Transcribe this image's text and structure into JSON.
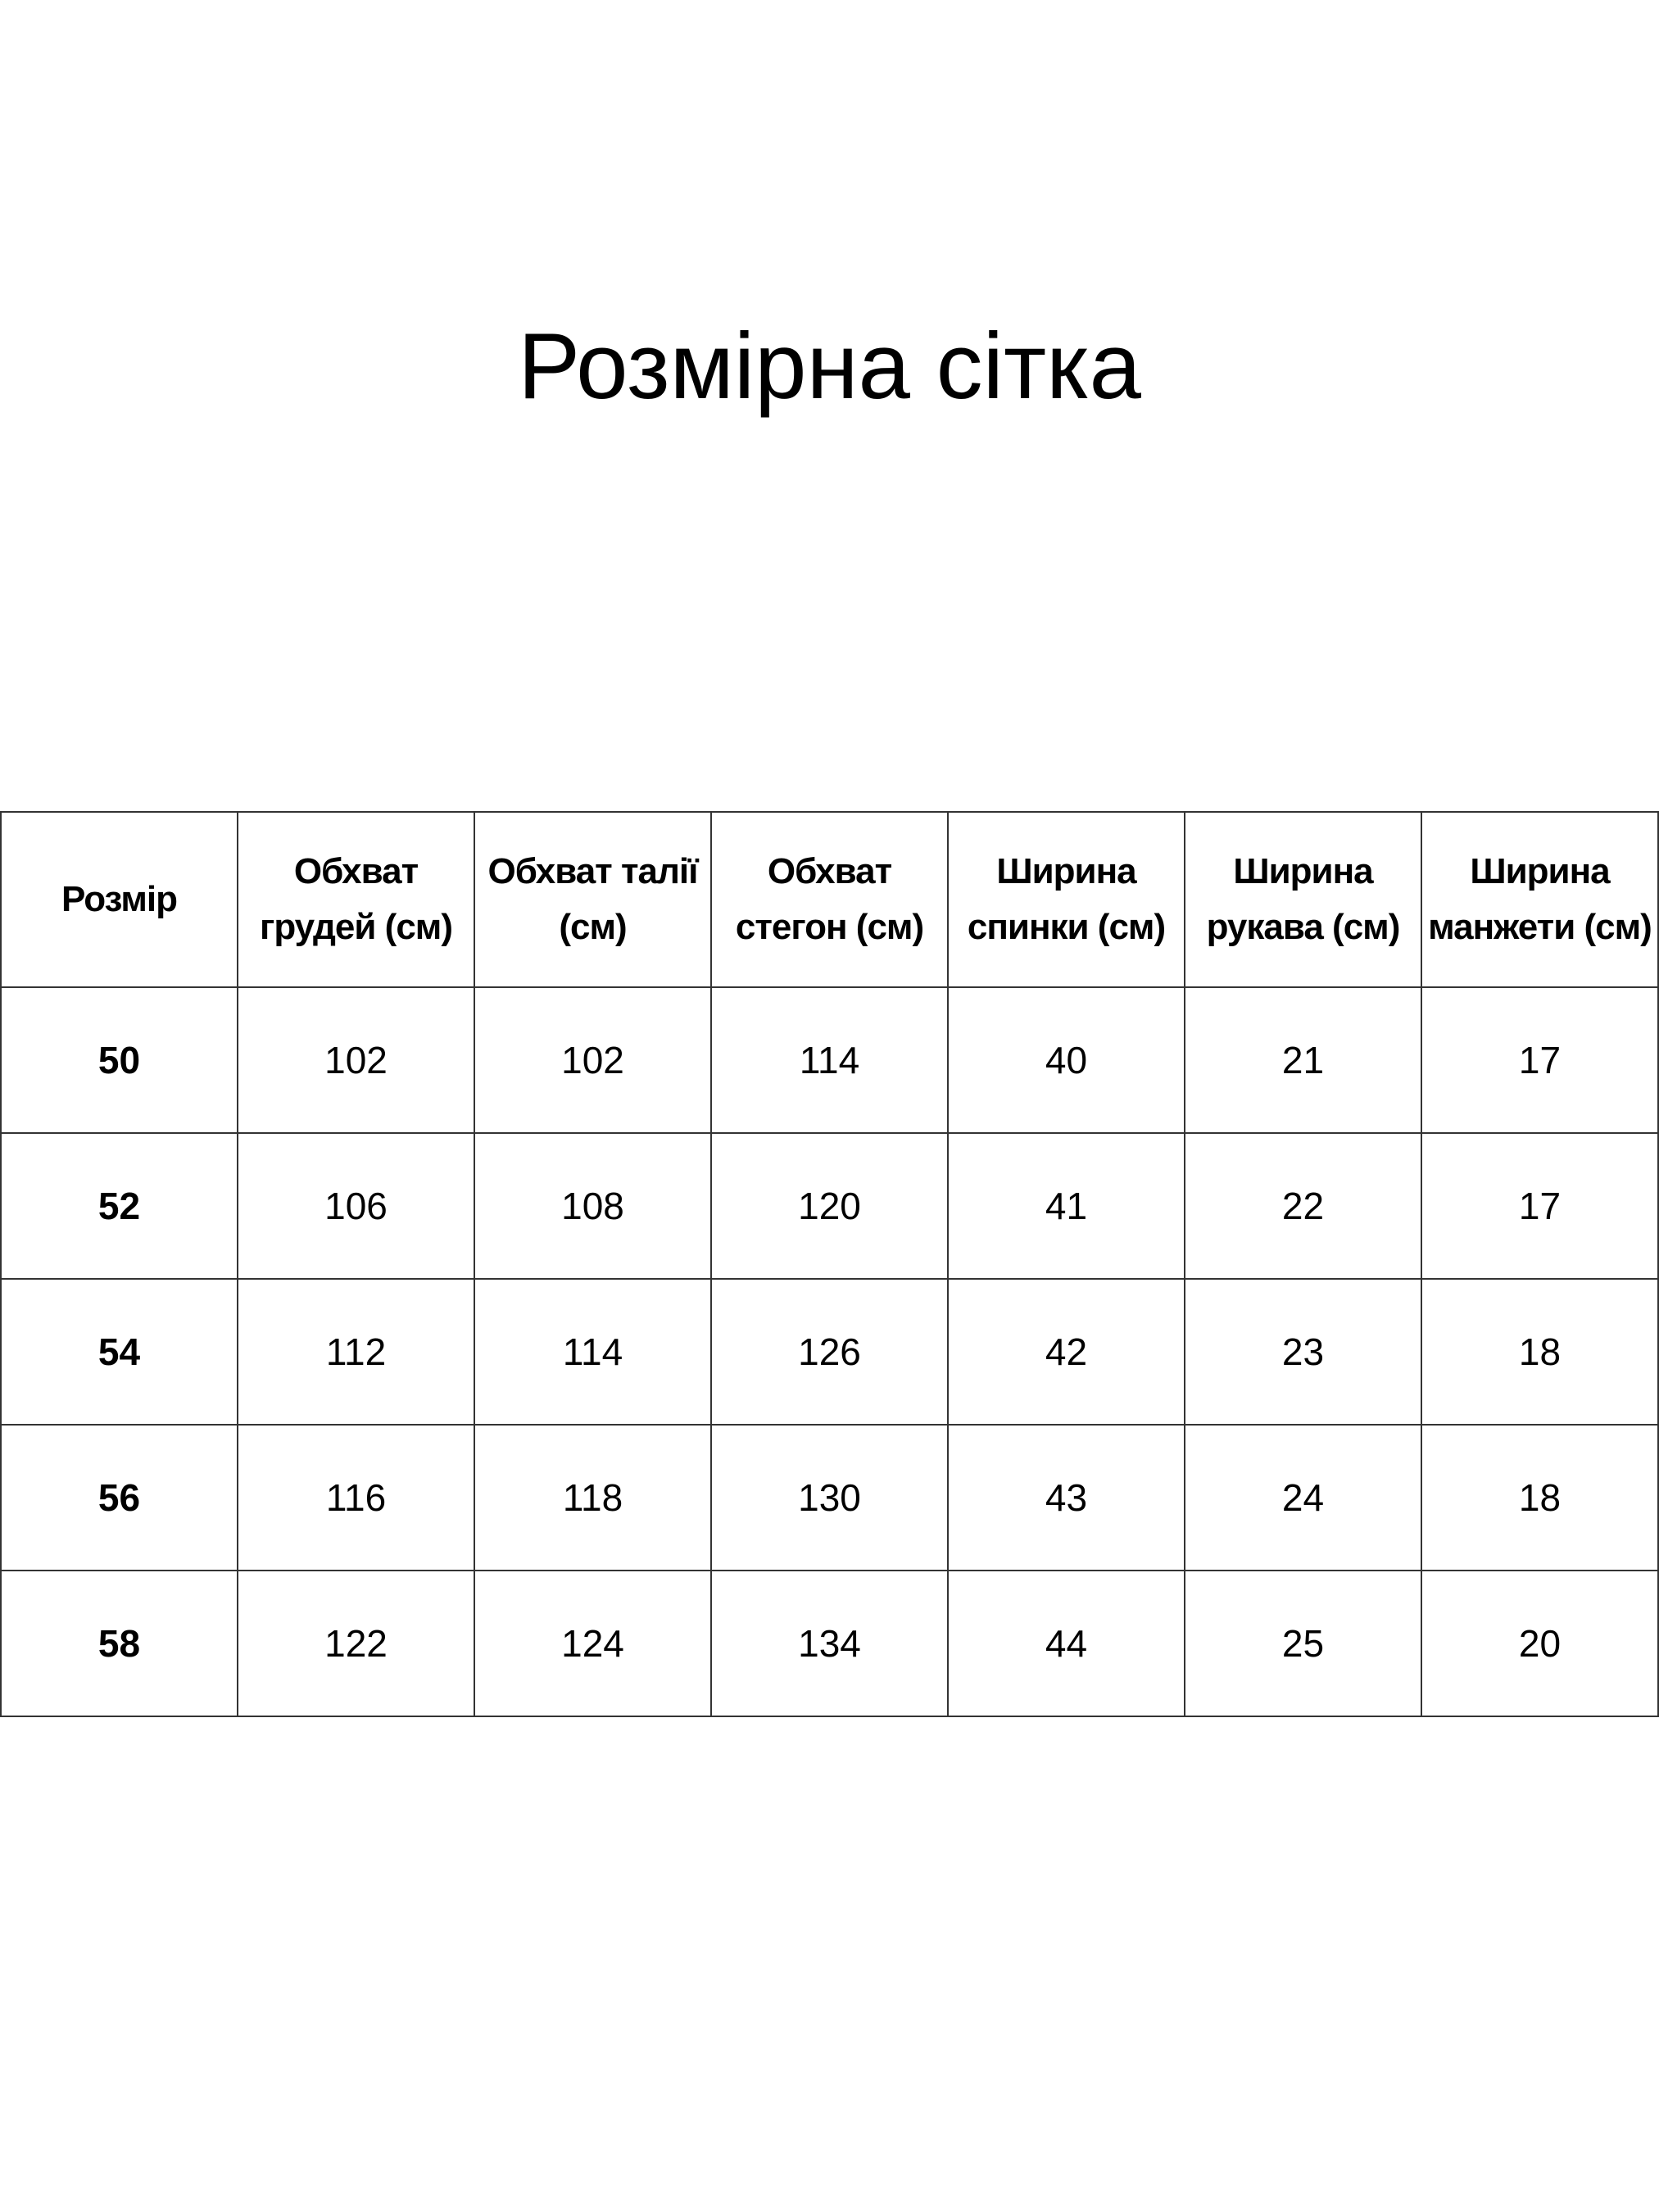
{
  "title": "Розмірна сітка",
  "table": {
    "headers": [
      "Розмір",
      "Обхват грудей (см)",
      "Обхват талії (см)",
      "Обхват стегон (см)",
      "Ширина спинки (см)",
      "Ширина рукава (см)",
      "Ширина манжети (см)"
    ],
    "rows": [
      [
        "50",
        "102",
        "102",
        "114",
        "40",
        "21",
        "17"
      ],
      [
        "52",
        "106",
        "108",
        "120",
        "41",
        "22",
        "17"
      ],
      [
        "54",
        "112",
        "114",
        "126",
        "42",
        "23",
        "18"
      ],
      [
        "56",
        "116",
        "118",
        "130",
        "43",
        "24",
        "18"
      ],
      [
        "58",
        "122",
        "124",
        "134",
        "44",
        "25",
        "20"
      ]
    ]
  }
}
